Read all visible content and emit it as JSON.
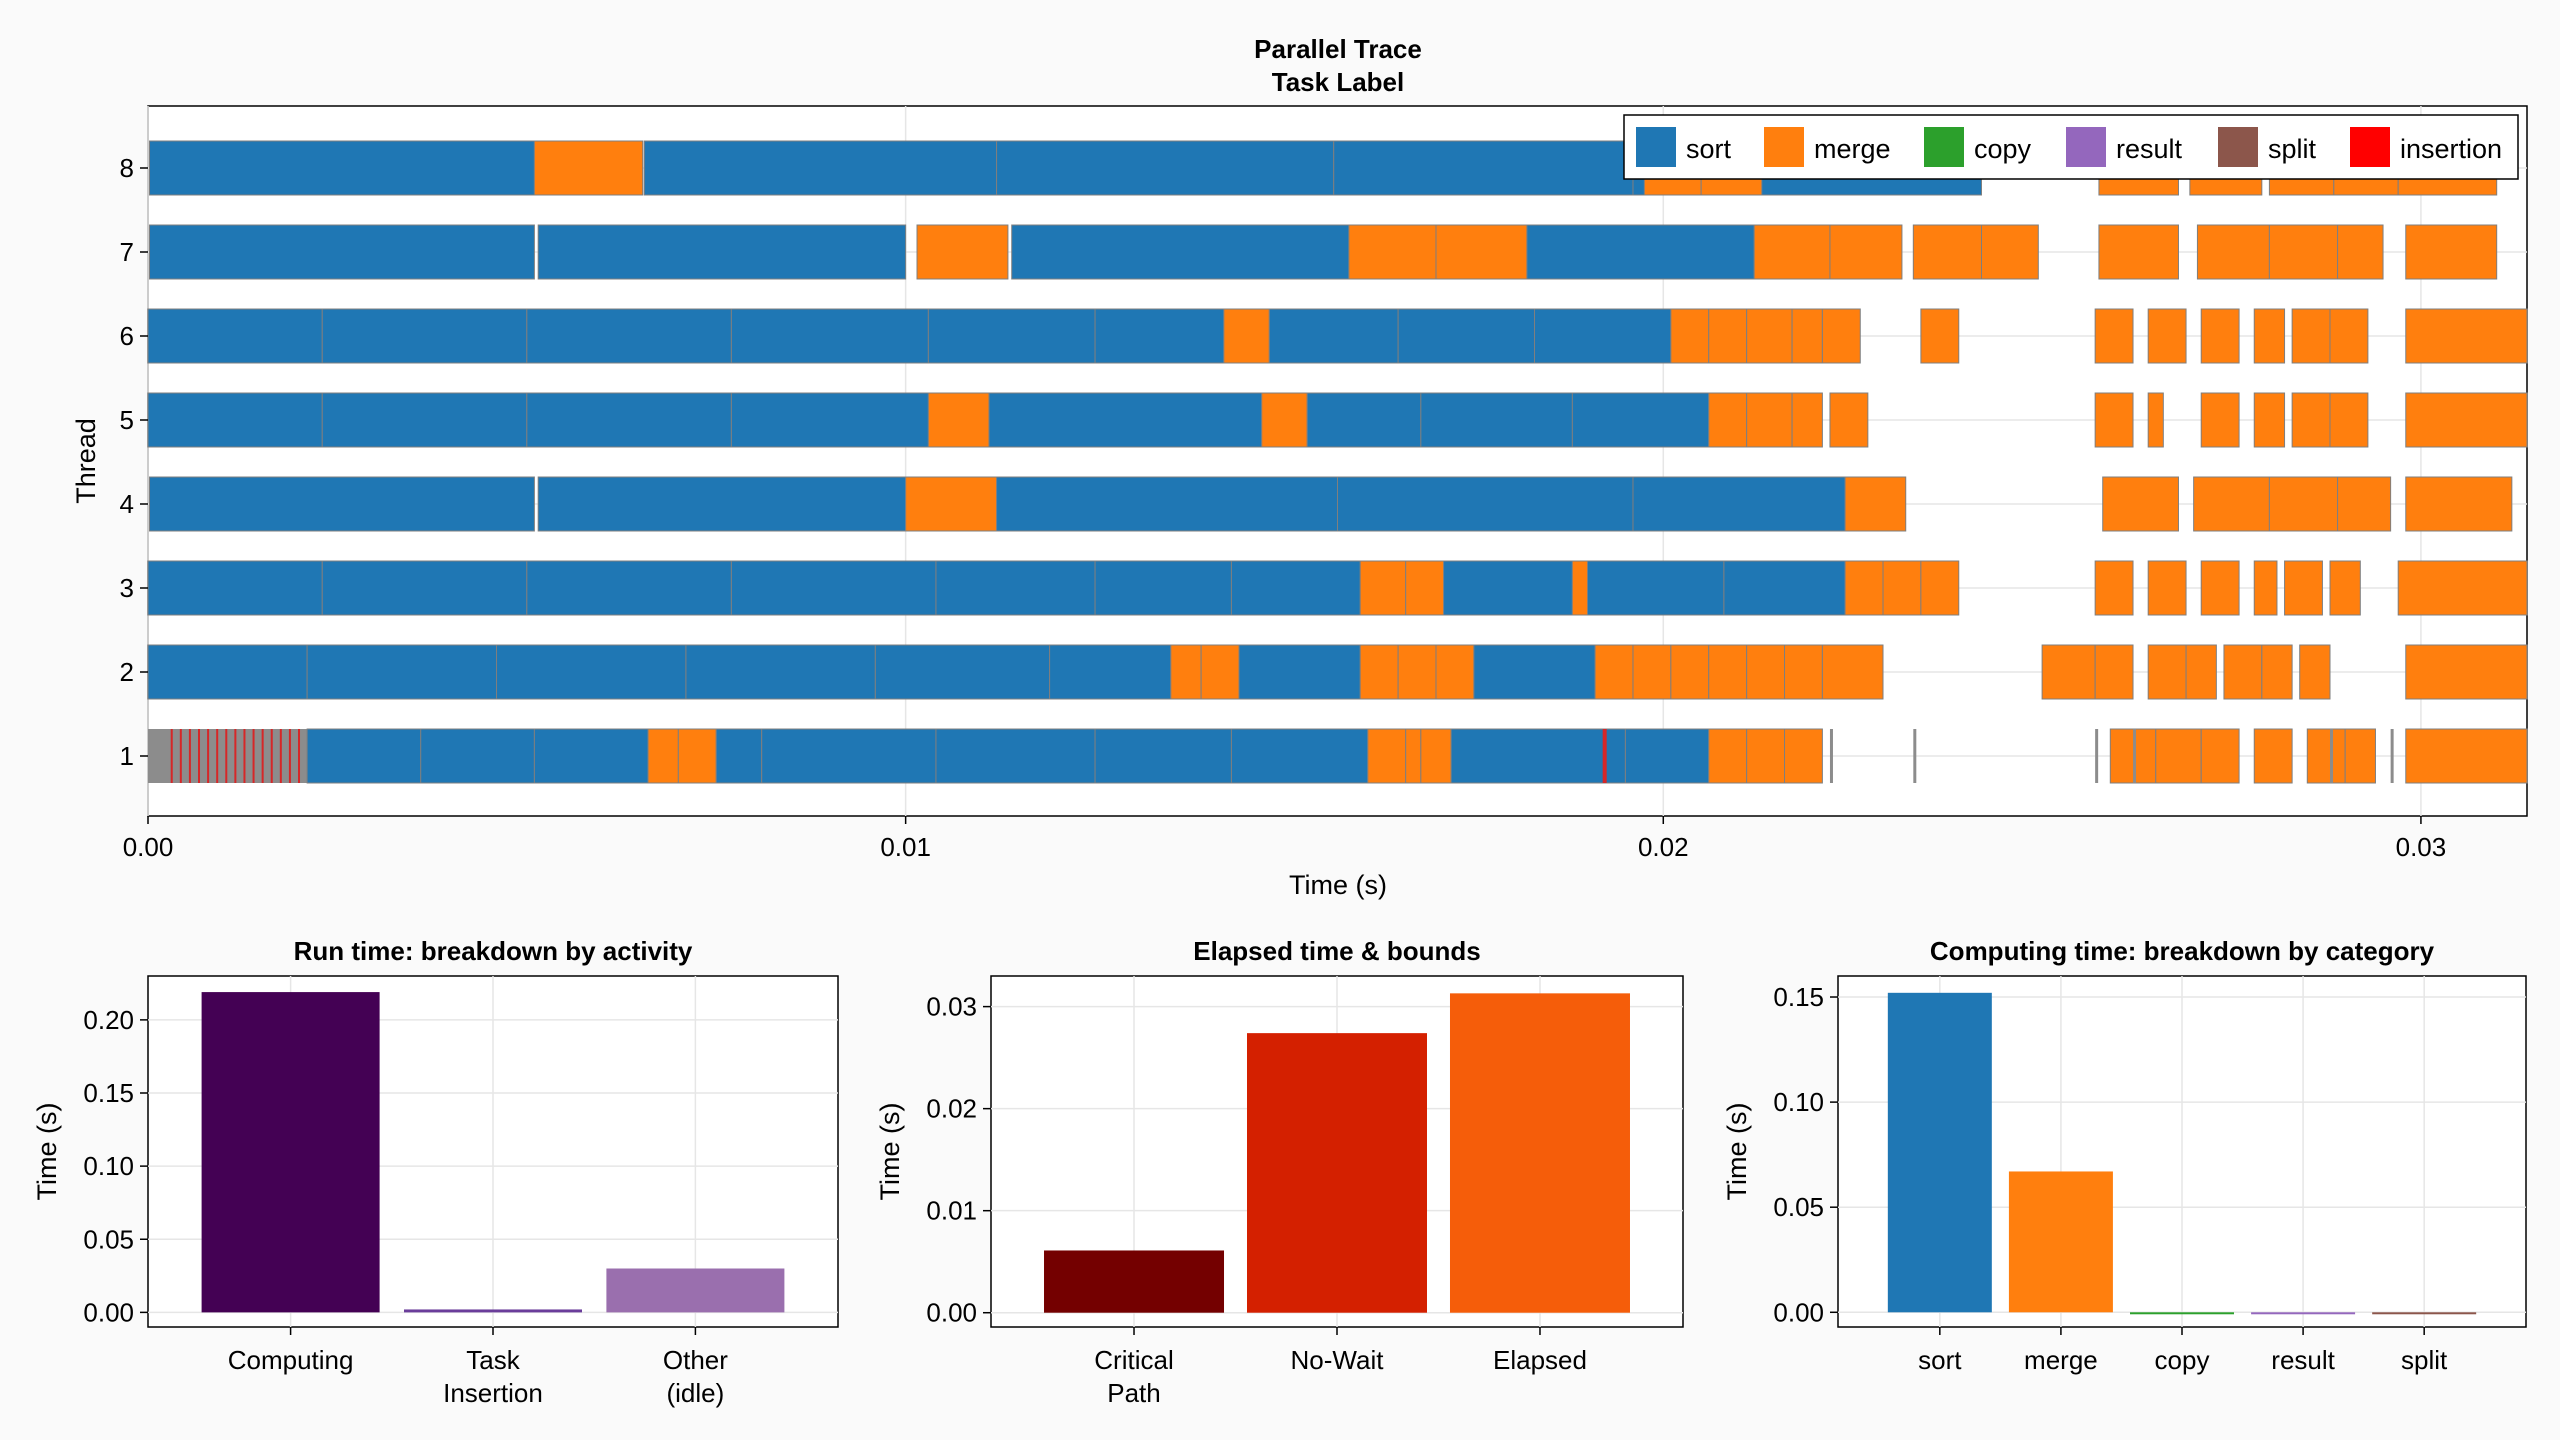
{
  "chart_data": [
    {
      "type": "timeline",
      "title": "Parallel Trace",
      "subtitle": "Task Label",
      "xlabel": "Time (s)",
      "ylabel": "Thread",
      "xlim": [
        0.0,
        0.0314
      ],
      "xticks": [
        "0.00",
        "0.01",
        "0.02",
        "0.03"
      ],
      "xtick_values": [
        0.0,
        0.01,
        0.02,
        0.03
      ],
      "threads": [
        "1",
        "2",
        "3",
        "4",
        "5",
        "6",
        "7",
        "8"
      ],
      "legend": [
        {
          "name": "sort",
          "color": "#1f77b4"
        },
        {
          "name": "merge",
          "color": "#ff7f0e"
        },
        {
          "name": "copy",
          "color": "#2ca02c"
        },
        {
          "name": "result",
          "color": "#9467bd"
        },
        {
          "name": "split",
          "color": "#8c564b"
        },
        {
          "name": "insertion",
          "color": "#ff0000"
        }
      ],
      "lanes": [
        {
          "thread": 8,
          "tasks": [
            [
              "sort",
              2e-05,
              0.0051
            ],
            [
              "merge",
              0.0051,
              0.00653
            ],
            [
              "sort",
              0.00655,
              0.0112
            ],
            [
              "sort",
              0.0112,
              0.01565
            ],
            [
              "sort",
              0.01565,
              0.0196
            ],
            [
              "sort",
              0.0196,
              0.0242
            ],
            [
              "merge",
              0.01975,
              0.0205
            ],
            [
              "merge",
              0.0205,
              0.0213
            ],
            [
              "merge",
              0.02575,
              0.0268
            ],
            [
              "merge",
              0.02695,
              0.0279
            ],
            [
              "merge",
              0.028,
              0.02885
            ],
            [
              "merge",
              0.02885,
              0.0297
            ],
            [
              "merge",
              0.0297,
              0.031
            ]
          ]
        },
        {
          "thread": 7,
          "tasks": [
            [
              "sort",
              2e-05,
              0.0051
            ],
            [
              "sort",
              0.00515,
              0.01
            ],
            [
              "merge",
              0.01015,
              0.01135
            ],
            [
              "sort",
              0.0114,
              0.01585
            ],
            [
              "merge",
              0.01585,
              0.017
            ],
            [
              "merge",
              0.017,
              0.0182
            ],
            [
              "sort",
              0.0182,
              0.0212
            ],
            [
              "merge",
              0.0212,
              0.0222
            ],
            [
              "merge",
              0.0222,
              0.02315
            ],
            [
              "merge",
              0.0233,
              0.0242
            ],
            [
              "merge",
              0.0242,
              0.02495
            ],
            [
              "merge",
              0.02575,
              0.0268
            ],
            [
              "merge",
              0.02705,
              0.028
            ],
            [
              "merge",
              0.028,
              0.0289
            ],
            [
              "merge",
              0.0289,
              0.0295
            ],
            [
              "merge",
              0.0298,
              0.031
            ]
          ]
        },
        {
          "thread": 6,
          "tasks": [
            [
              "sort",
              0.0,
              0.0023
            ],
            [
              "sort",
              0.0023,
              0.005
            ],
            [
              "sort",
              0.005,
              0.0077
            ],
            [
              "sort",
              0.0077,
              0.0103
            ],
            [
              "sort",
              0.0103,
              0.0125
            ],
            [
              "sort",
              0.0125,
              0.0142
            ],
            [
              "merge",
              0.0142,
              0.0148
            ],
            [
              "sort",
              0.0148,
              0.0165
            ],
            [
              "sort",
              0.0165,
              0.0183
            ],
            [
              "sort",
              0.0183,
              0.0201
            ],
            [
              "merge",
              0.0201,
              0.0206
            ],
            [
              "merge",
              0.0206,
              0.0211
            ],
            [
              "merge",
              0.0211,
              0.0217
            ],
            [
              "merge",
              0.0217,
              0.0221
            ],
            [
              "merge",
              0.0221,
              0.0226
            ],
            [
              "merge",
              0.0234,
              0.0239
            ],
            [
              "merge",
              0.0257,
              0.0262
            ],
            [
              "merge",
              0.0264,
              0.0269
            ],
            [
              "merge",
              0.0271,
              0.0276
            ],
            [
              "merge",
              0.0278,
              0.0282
            ],
            [
              "merge",
              0.0283,
              0.0288
            ],
            [
              "merge",
              0.0288,
              0.0293
            ],
            [
              "merge",
              0.0298,
              0.0314
            ]
          ]
        },
        {
          "thread": 5,
          "tasks": [
            [
              "sort",
              0.0,
              0.0023
            ],
            [
              "sort",
              0.0023,
              0.005
            ],
            [
              "sort",
              0.005,
              0.0077
            ],
            [
              "sort",
              0.0077,
              0.0103
            ],
            [
              "merge",
              0.0103,
              0.0111
            ],
            [
              "sort",
              0.0111,
              0.0147
            ],
            [
              "merge",
              0.0147,
              0.0153
            ],
            [
              "sort",
              0.0153,
              0.0168
            ],
            [
              "sort",
              0.0168,
              0.0188
            ],
            [
              "sort",
              0.0188,
              0.0206
            ],
            [
              "merge",
              0.0206,
              0.0211
            ],
            [
              "merge",
              0.0211,
              0.0217
            ],
            [
              "merge",
              0.0217,
              0.0221
            ],
            [
              "merge",
              0.0222,
              0.0227
            ],
            [
              "merge",
              0.0257,
              0.0262
            ],
            [
              "merge",
              0.0264,
              0.0266
            ],
            [
              "merge",
              0.0271,
              0.0276
            ],
            [
              "merge",
              0.0278,
              0.0282
            ],
            [
              "merge",
              0.0283,
              0.0288
            ],
            [
              "merge",
              0.0288,
              0.0293
            ],
            [
              "merge",
              0.0298,
              0.0314
            ]
          ]
        },
        {
          "thread": 4,
          "tasks": [
            [
              "sort",
              2e-05,
              0.0051
            ],
            [
              "sort",
              0.00515,
              0.01
            ],
            [
              "merge",
              0.01,
              0.0112
            ],
            [
              "sort",
              0.0112,
              0.0157
            ],
            [
              "sort",
              0.0157,
              0.0196
            ],
            [
              "sort",
              0.0196,
              0.0224
            ],
            [
              "merge",
              0.0224,
              0.0232
            ],
            [
              "merge",
              0.0258,
              0.0268
            ],
            [
              "merge",
              0.027,
              0.028
            ],
            [
              "merge",
              0.028,
              0.0289
            ],
            [
              "merge",
              0.0289,
              0.0296
            ],
            [
              "merge",
              0.0298,
              0.0312
            ]
          ]
        },
        {
          "thread": 3,
          "tasks": [
            [
              "sort",
              0.0,
              0.0023
            ],
            [
              "sort",
              0.0023,
              0.005
            ],
            [
              "sort",
              0.005,
              0.0077
            ],
            [
              "sort",
              0.0077,
              0.0104
            ],
            [
              "sort",
              0.0104,
              0.0125
            ],
            [
              "sort",
              0.0125,
              0.0143
            ],
            [
              "sort",
              0.0143,
              0.016
            ],
            [
              "merge",
              0.016,
              0.0166
            ],
            [
              "merge",
              0.0166,
              0.0171
            ],
            [
              "sort",
              0.0171,
              0.0188
            ],
            [
              "merge",
              0.0188,
              0.019
            ],
            [
              "sort",
              0.019,
              0.0208
            ],
            [
              "sort",
              0.0208,
              0.0224
            ],
            [
              "merge",
              0.0224,
              0.0229
            ],
            [
              "merge",
              0.0229,
              0.0234
            ],
            [
              "merge",
              0.0234,
              0.0239
            ],
            [
              "merge",
              0.0257,
              0.0262
            ],
            [
              "merge",
              0.0264,
              0.0269
            ],
            [
              "merge",
              0.0271,
              0.0276
            ],
            [
              "merge",
              0.0278,
              0.0281
            ],
            [
              "merge",
              0.0282,
              0.0287
            ],
            [
              "merge",
              0.0288,
              0.0292
            ],
            [
              "merge",
              0.0297,
              0.0314
            ]
          ]
        },
        {
          "thread": 2,
          "tasks": [
            [
              "sort",
              0.0,
              0.0021
            ],
            [
              "sort",
              0.0021,
              0.0046
            ],
            [
              "sort",
              0.0046,
              0.0071
            ],
            [
              "sort",
              0.0071,
              0.0096
            ],
            [
              "sort",
              0.0096,
              0.0119
            ],
            [
              "sort",
              0.0119,
              0.0135
            ],
            [
              "merge",
              0.0135,
              0.0139
            ],
            [
              "merge",
              0.0139,
              0.0144
            ],
            [
              "sort",
              0.0144,
              0.016
            ],
            [
              "merge",
              0.016,
              0.0165
            ],
            [
              "merge",
              0.0165,
              0.017
            ],
            [
              "merge",
              0.017,
              0.0175
            ],
            [
              "sort",
              0.0175,
              0.0191
            ],
            [
              "merge",
              0.0191,
              0.0196
            ],
            [
              "merge",
              0.0196,
              0.0201
            ],
            [
              "merge",
              0.0201,
              0.0206
            ],
            [
              "merge",
              0.0206,
              0.0211
            ],
            [
              "merge",
              0.0211,
              0.0216
            ],
            [
              "merge",
              0.0216,
              0.0221
            ],
            [
              "merge",
              0.0221,
              0.0229
            ],
            [
              "merge",
              0.025,
              0.0257
            ],
            [
              "merge",
              0.0257,
              0.0262
            ],
            [
              "merge",
              0.0264,
              0.0269
            ],
            [
              "merge",
              0.0269,
              0.0273
            ],
            [
              "merge",
              0.0274,
              0.0279
            ],
            [
              "merge",
              0.0279,
              0.0283
            ],
            [
              "merge",
              0.0284,
              0.0288
            ],
            [
              "merge",
              0.0298,
              0.0314
            ]
          ]
        },
        {
          "thread": 1,
          "tasks": [
            [
              "sort",
              0.0021,
              0.0036
            ],
            [
              "sort",
              0.0036,
              0.0051
            ],
            [
              "sort",
              0.0051,
              0.0066
            ],
            [
              "merge",
              0.0066,
              0.007
            ],
            [
              "merge",
              0.007,
              0.0075
            ],
            [
              "sort",
              0.0075,
              0.0081
            ],
            [
              "sort",
              0.0081,
              0.0104
            ],
            [
              "sort",
              0.0104,
              0.0125
            ],
            [
              "sort",
              0.0125,
              0.0143
            ],
            [
              "sort",
              0.0143,
              0.0161
            ],
            [
              "merge",
              0.0161,
              0.0166
            ],
            [
              "merge",
              0.0166,
              0.0168
            ],
            [
              "merge",
              0.0168,
              0.0172
            ],
            [
              "sort",
              0.0172,
              0.0195
            ],
            [
              "sort",
              0.0195,
              0.0206
            ],
            [
              "merge",
              0.0206,
              0.0211
            ],
            [
              "merge",
              0.0211,
              0.0216
            ],
            [
              "merge",
              0.0216,
              0.0221
            ],
            [
              "merge",
              0.0259,
              0.0265
            ],
            [
              "merge",
              0.0265,
              0.0271
            ],
            [
              "merge",
              0.0271,
              0.0276
            ],
            [
              "merge",
              0.0278,
              0.0283
            ],
            [
              "merge",
              0.0285,
              0.029
            ],
            [
              "merge",
              0.029,
              0.0294
            ],
            [
              "merge",
              0.0298,
              0.0314
            ]
          ]
        }
      ],
      "markers": {
        "insertion_range_thread1": [
          0.0003,
          0.0021
        ],
        "gray_ticks_thread1": [
          0.0222,
          0.0233,
          0.0257,
          0.0262,
          0.0288,
          0.0296
        ]
      }
    },
    {
      "type": "bar",
      "title": "Run time: breakdown by activity",
      "ylabel": "Time (s)",
      "categories": [
        "Computing",
        "Task\nInsertion",
        "Other\n(idle)"
      ],
      "values": [
        0.219,
        0.002,
        0.03
      ],
      "colors": [
        "#440154",
        "#6a3d9a",
        "#9a6fae"
      ],
      "ylim": [
        -0.01,
        0.23
      ],
      "yticks": [
        "0.00",
        "0.05",
        "0.10",
        "0.15",
        "0.20"
      ],
      "ytick_values": [
        0.0,
        0.05,
        0.1,
        0.15,
        0.2
      ]
    },
    {
      "type": "bar",
      "title": "Elapsed time & bounds",
      "ylabel": "Time (s)",
      "categories": [
        "Critical\nPath",
        "No-Wait",
        "Elapsed"
      ],
      "values": [
        0.0061,
        0.0274,
        0.0313
      ],
      "colors": [
        "#740000",
        "#d42000",
        "#f55d0a"
      ],
      "ylim": [
        -0.0014,
        0.033
      ],
      "yticks": [
        "0.00",
        "0.01",
        "0.02",
        "0.03"
      ],
      "ytick_values": [
        0.0,
        0.01,
        0.02,
        0.03
      ]
    },
    {
      "type": "bar",
      "title": "Computing time: breakdown by category",
      "ylabel": "Time (s)",
      "categories": [
        "sort",
        "merge",
        "copy",
        "result",
        "split"
      ],
      "values": [
        0.152,
        0.067,
        0.0,
        0.0,
        0.0
      ],
      "colors": [
        "#1f77b4",
        "#ff7f0e",
        "#2ca02c",
        "#9467bd",
        "#8c564b"
      ],
      "ylim": [
        -0.007,
        0.16
      ],
      "yticks": [
        "0.00",
        "0.05",
        "0.10",
        "0.15"
      ],
      "ytick_values": [
        0.0,
        0.05,
        0.1,
        0.15
      ]
    }
  ]
}
